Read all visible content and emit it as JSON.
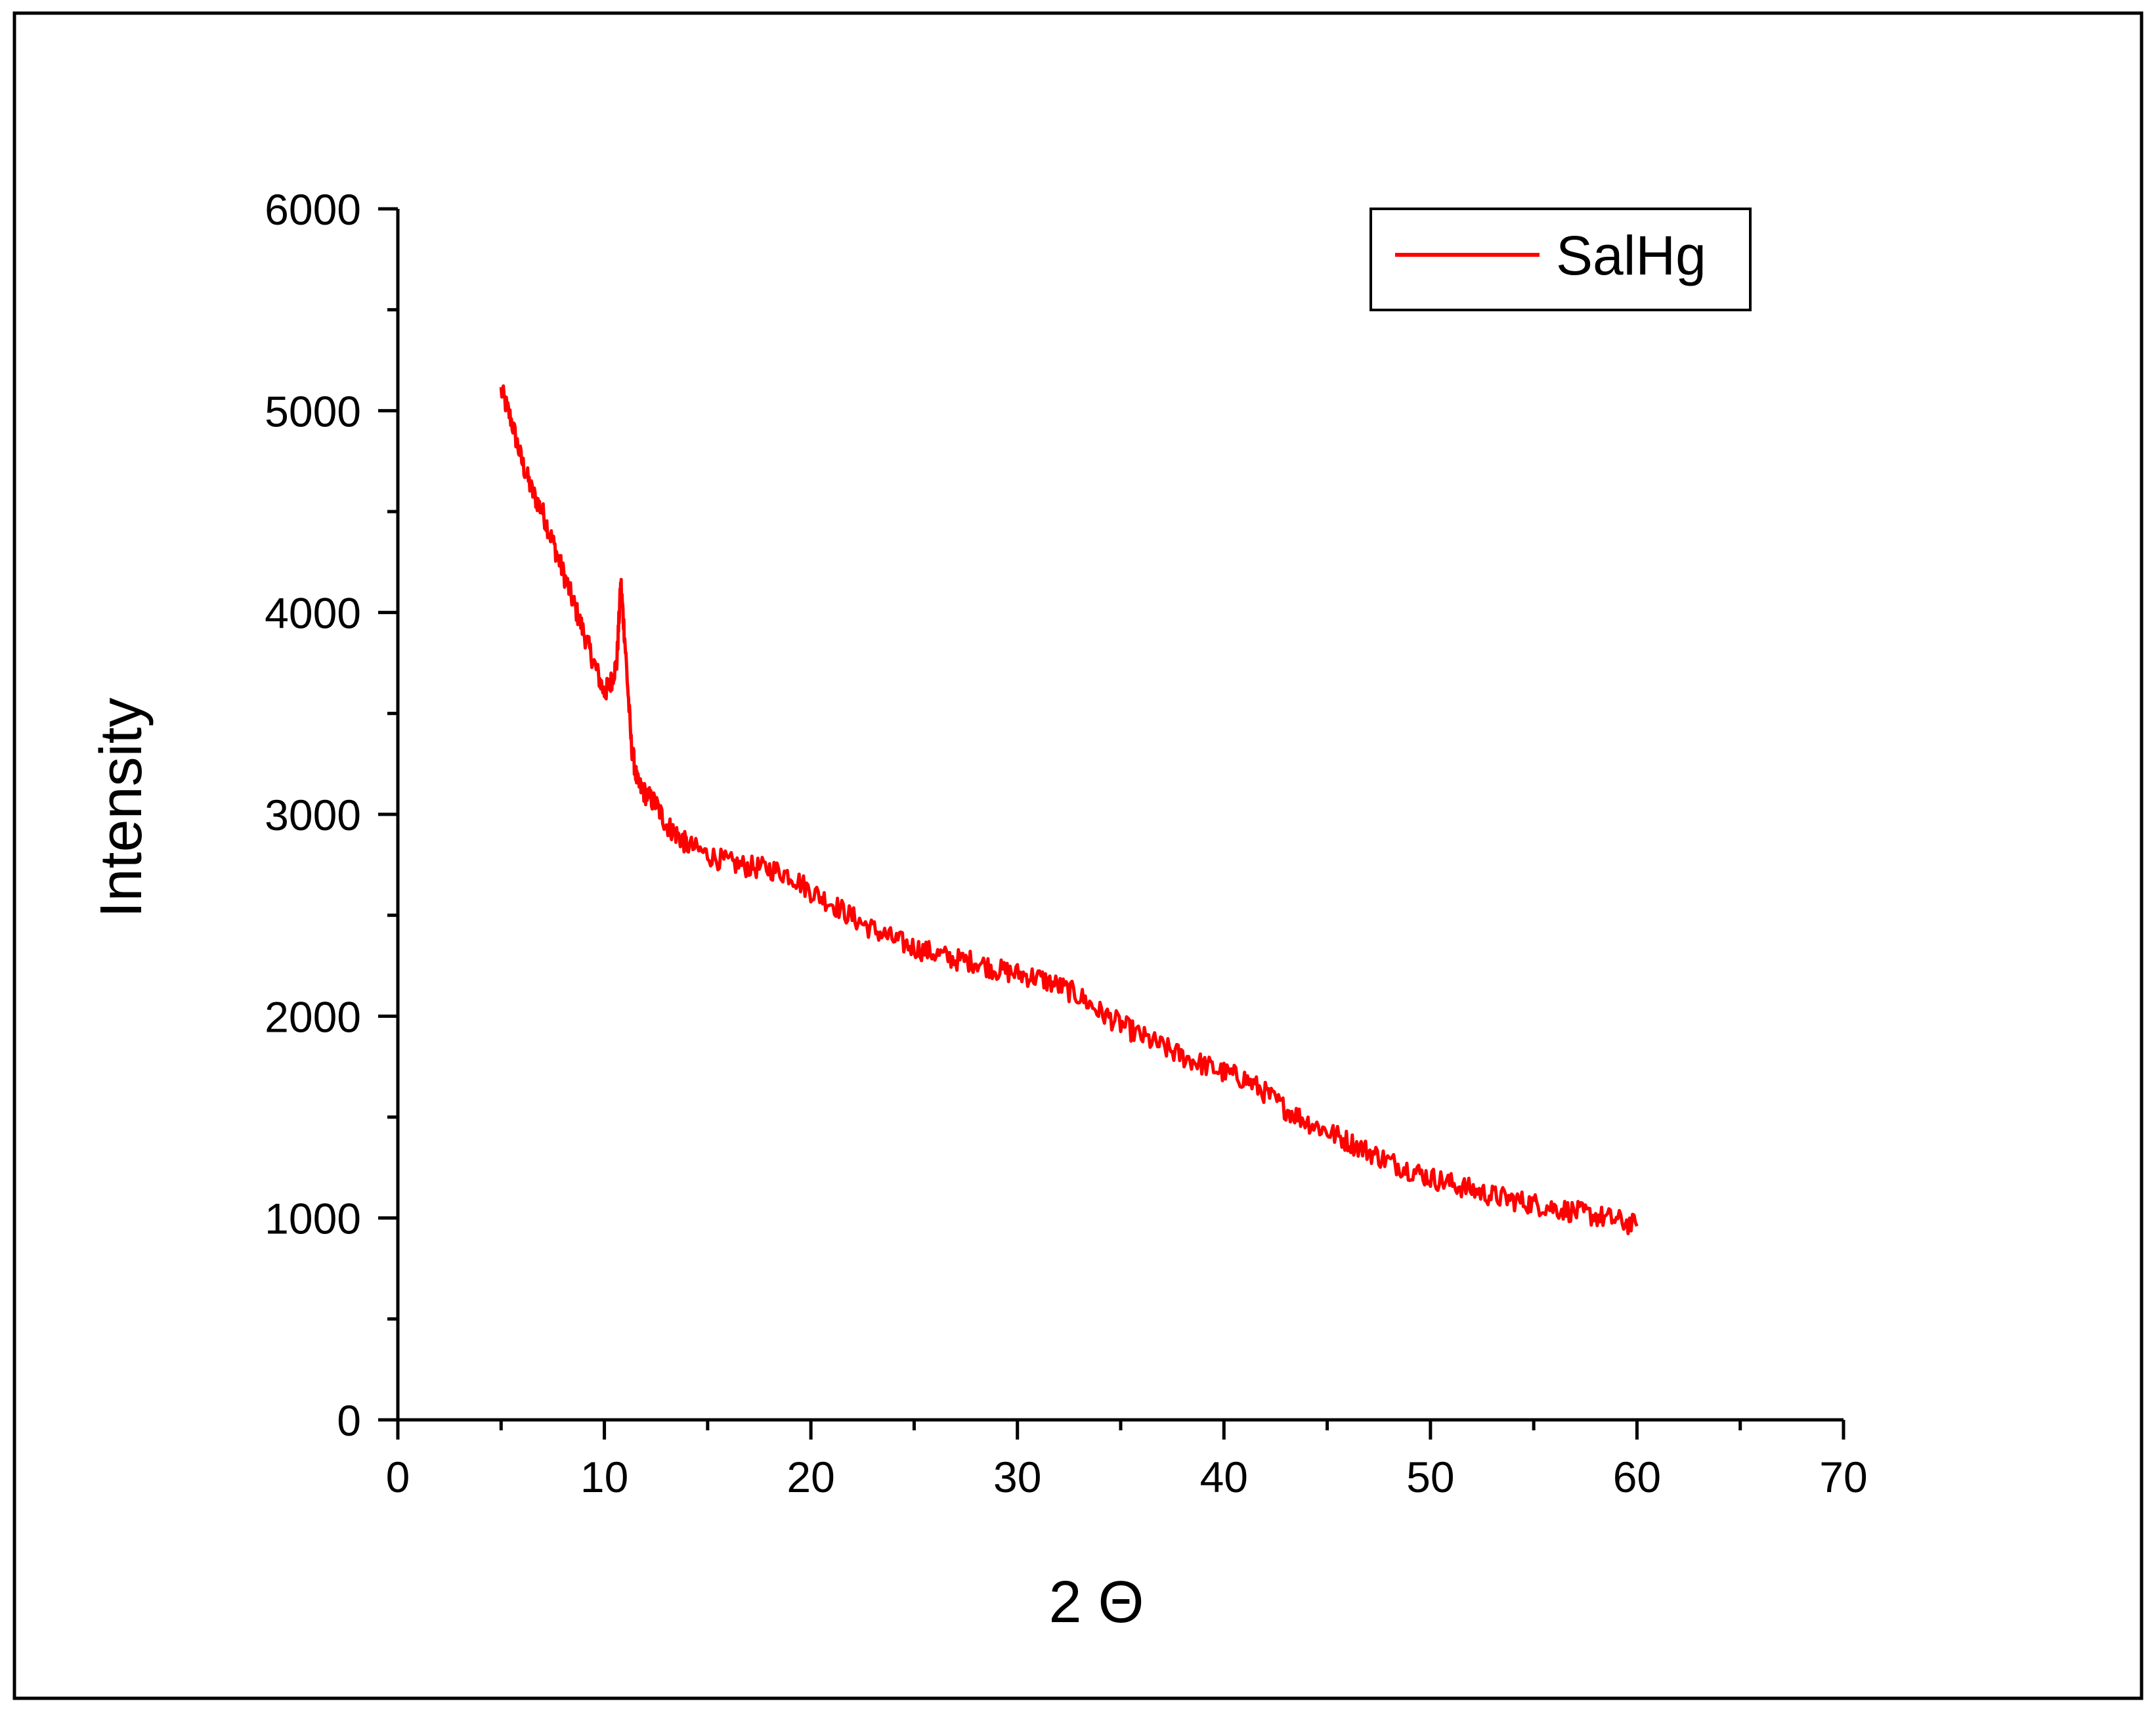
{
  "chart_data": {
    "type": "line",
    "title": "",
    "xlabel": "2 Θ",
    "ylabel": "Intensity",
    "xlim": [
      0,
      70
    ],
    "ylim": [
      0,
      6000
    ],
    "x_ticks": [
      0,
      10,
      20,
      30,
      40,
      50,
      60,
      70
    ],
    "y_ticks": [
      0,
      1000,
      2000,
      3000,
      4000,
      5000,
      6000
    ],
    "x_tick_labels": [
      "0",
      "10",
      "20",
      "30",
      "40",
      "50",
      "60",
      "70"
    ],
    "y_tick_labels": [
      "0",
      "1000",
      "2000",
      "3000",
      "4000",
      "5000",
      "6000"
    ],
    "x_minor_step": 5,
    "y_minor_step": 500,
    "grid": false,
    "legend_position": "top-right",
    "series": [
      {
        "name": "SalHg",
        "color": "#ff0000",
        "x": [
          5,
          5.5,
          6,
          6.5,
          7,
          7.5,
          8,
          8.5,
          9,
          9.5,
          10,
          10.3,
          10.6,
          10.8,
          11,
          11.3,
          11.6,
          12,
          12.5,
          13,
          13.5,
          14,
          15,
          16,
          17,
          18,
          19,
          20,
          21,
          22,
          23,
          24,
          25,
          26,
          27,
          28,
          29,
          30,
          31,
          32,
          33,
          34,
          35,
          36,
          37,
          38,
          39,
          40,
          41,
          42,
          43,
          44,
          45,
          46,
          47,
          48,
          49,
          50,
          51,
          52,
          53,
          54,
          55,
          56,
          57,
          58,
          59,
          60
        ],
        "y": [
          5100,
          4950,
          4750,
          4600,
          4500,
          4350,
          4200,
          4050,
          3900,
          3750,
          3600,
          3650,
          3750,
          4150,
          3850,
          3350,
          3150,
          3100,
          3050,
          2950,
          2900,
          2850,
          2800,
          2760,
          2740,
          2730,
          2700,
          2620,
          2560,
          2490,
          2430,
          2380,
          2340,
          2310,
          2280,
          2270,
          2230,
          2210,
          2190,
          2150,
          2100,
          2020,
          1960,
          1900,
          1850,
          1800,
          1760,
          1720,
          1690,
          1620,
          1540,
          1480,
          1430,
          1380,
          1330,
          1280,
          1240,
          1200,
          1170,
          1140,
          1110,
          1090,
          1070,
          1050,
          1030,
          1010,
          990,
          960
        ]
      }
    ]
  }
}
